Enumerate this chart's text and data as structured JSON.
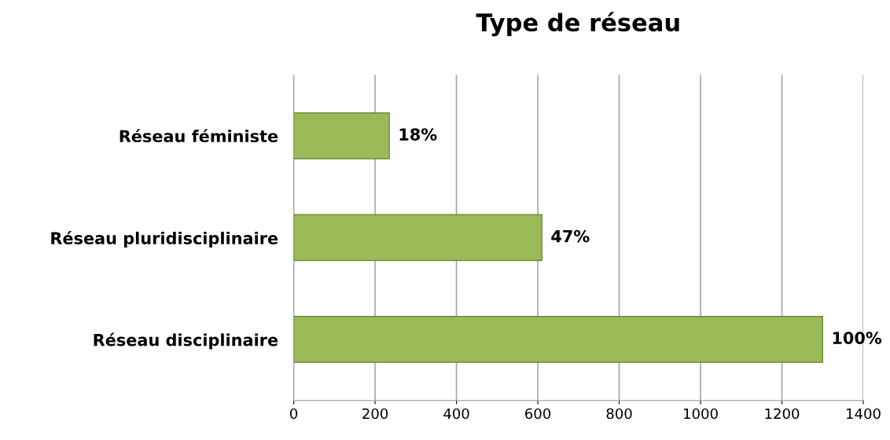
{
  "chart_data": {
    "type": "bar",
    "orientation": "horizontal",
    "title": "Type de réseau",
    "categories": [
      "Réseau féministe",
      "Réseau pluridisciplinaire",
      "Réseau disciplinaire"
    ],
    "values": [
      235,
      610,
      1300
    ],
    "annotations": [
      {
        "text": "18%",
        "x": 235,
        "y": "Réseau féministe"
      },
      {
        "text": "47%",
        "x": 610,
        "y": "Réseau pluridisciplinaire"
      },
      {
        "text": "100%",
        "x": 1300,
        "y": "Réseau disciplinaire"
      }
    ],
    "color": "#9bbb59",
    "xlim": [
      0,
      1400
    ],
    "xticks": [
      0,
      200,
      400,
      600,
      800,
      1000,
      1200,
      1400
    ],
    "grid": "x"
  }
}
